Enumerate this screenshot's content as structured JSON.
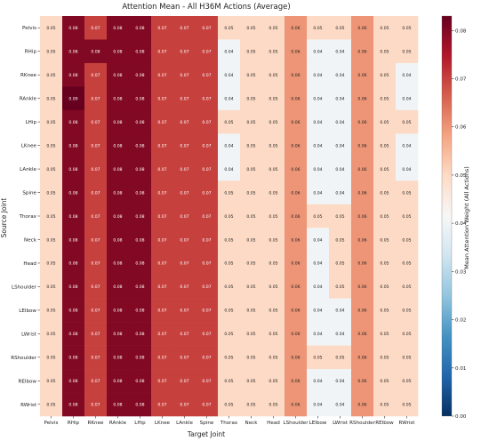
{
  "chart_data": {
    "type": "heatmap",
    "title": "Attention Mean - All H36M Actions (Average)",
    "xlabel": "Target Joint",
    "ylabel": "Source Joint",
    "x_categories": [
      "Pelvis",
      "RHip",
      "RKnee",
      "RAnkle",
      "LHip",
      "LKnee",
      "LAnkle",
      "Spine",
      "Thorax",
      "Neck",
      "Head",
      "LShoulder",
      "LElbow",
      "LWrist",
      "RShoulder",
      "RElbow",
      "RWrist"
    ],
    "y_categories": [
      "Pelvis",
      "RHip",
      "RKnee",
      "RAnkle",
      "LHip",
      "LKnee",
      "LAnkle",
      "Spine",
      "Thorax",
      "Neck",
      "Head",
      "LShoulder",
      "LElbow",
      "LWrist",
      "RShoulder",
      "RElbow",
      "RWrist"
    ],
    "values": [
      [
        0.05,
        0.08,
        0.07,
        0.08,
        0.08,
        0.07,
        0.07,
        0.07,
        0.05,
        0.05,
        0.05,
        0.06,
        0.05,
        0.05,
        0.06,
        0.05,
        0.05
      ],
      [
        0.05,
        0.08,
        0.08,
        0.08,
        0.08,
        0.07,
        0.07,
        0.07,
        0.04,
        0.05,
        0.05,
        0.06,
        0.04,
        0.04,
        0.06,
        0.05,
        0.05
      ],
      [
        0.05,
        0.08,
        0.07,
        0.08,
        0.08,
        0.07,
        0.07,
        0.07,
        0.04,
        0.05,
        0.05,
        0.06,
        0.04,
        0.04,
        0.06,
        0.05,
        0.04
      ],
      [
        0.05,
        0.09,
        0.07,
        0.08,
        0.08,
        0.07,
        0.07,
        0.07,
        0.04,
        0.05,
        0.05,
        0.06,
        0.04,
        0.04,
        0.06,
        0.05,
        0.04
      ],
      [
        0.05,
        0.08,
        0.07,
        0.08,
        0.08,
        0.07,
        0.07,
        0.07,
        0.05,
        0.05,
        0.05,
        0.06,
        0.04,
        0.04,
        0.06,
        0.05,
        0.05
      ],
      [
        0.05,
        0.08,
        0.07,
        0.08,
        0.08,
        0.07,
        0.07,
        0.07,
        0.04,
        0.05,
        0.05,
        0.06,
        0.04,
        0.04,
        0.06,
        0.05,
        0.04
      ],
      [
        0.05,
        0.08,
        0.07,
        0.08,
        0.08,
        0.07,
        0.07,
        0.07,
        0.04,
        0.05,
        0.05,
        0.06,
        0.04,
        0.04,
        0.06,
        0.05,
        0.04
      ],
      [
        0.05,
        0.08,
        0.07,
        0.08,
        0.08,
        0.07,
        0.07,
        0.07,
        0.05,
        0.05,
        0.05,
        0.06,
        0.04,
        0.04,
        0.06,
        0.05,
        0.05
      ],
      [
        0.05,
        0.08,
        0.07,
        0.08,
        0.08,
        0.07,
        0.07,
        0.07,
        0.05,
        0.05,
        0.05,
        0.06,
        0.05,
        0.05,
        0.06,
        0.05,
        0.05
      ],
      [
        0.05,
        0.08,
        0.07,
        0.08,
        0.08,
        0.07,
        0.07,
        0.07,
        0.05,
        0.05,
        0.05,
        0.06,
        0.04,
        0.05,
        0.06,
        0.05,
        0.05
      ],
      [
        0.05,
        0.08,
        0.07,
        0.08,
        0.08,
        0.07,
        0.07,
        0.07,
        0.05,
        0.05,
        0.05,
        0.06,
        0.04,
        0.05,
        0.06,
        0.05,
        0.05
      ],
      [
        0.05,
        0.08,
        0.07,
        0.08,
        0.08,
        0.07,
        0.07,
        0.07,
        0.05,
        0.05,
        0.05,
        0.06,
        0.04,
        0.05,
        0.06,
        0.05,
        0.05
      ],
      [
        0.05,
        0.08,
        0.07,
        0.08,
        0.08,
        0.07,
        0.07,
        0.07,
        0.05,
        0.05,
        0.05,
        0.06,
        0.04,
        0.04,
        0.06,
        0.05,
        0.05
      ],
      [
        0.05,
        0.08,
        0.07,
        0.08,
        0.08,
        0.07,
        0.07,
        0.07,
        0.05,
        0.05,
        0.05,
        0.06,
        0.04,
        0.04,
        0.06,
        0.05,
        0.05
      ],
      [
        0.05,
        0.08,
        0.07,
        0.08,
        0.08,
        0.07,
        0.07,
        0.07,
        0.05,
        0.05,
        0.05,
        0.06,
        0.05,
        0.05,
        0.06,
        0.05,
        0.05
      ],
      [
        0.05,
        0.08,
        0.07,
        0.08,
        0.08,
        0.07,
        0.07,
        0.07,
        0.05,
        0.05,
        0.05,
        0.06,
        0.04,
        0.04,
        0.06,
        0.05,
        0.05
      ],
      [
        0.05,
        0.08,
        0.07,
        0.08,
        0.08,
        0.07,
        0.07,
        0.07,
        0.05,
        0.05,
        0.05,
        0.06,
        0.04,
        0.04,
        0.06,
        0.05,
        0.05
      ]
    ],
    "colorbar": {
      "label": "Mean Attention Weight (All Actions)",
      "range": [
        0.0,
        0.083
      ],
      "ticks": [
        "0.00",
        "0.01",
        "0.02",
        "0.03",
        "0.04",
        "0.05",
        "0.06",
        "0.07",
        "0.08"
      ]
    },
    "colormap": "RdBu_r",
    "colors": {
      "low": "#053061",
      "mid": "#f7f7f7",
      "high": "#67001f"
    }
  }
}
